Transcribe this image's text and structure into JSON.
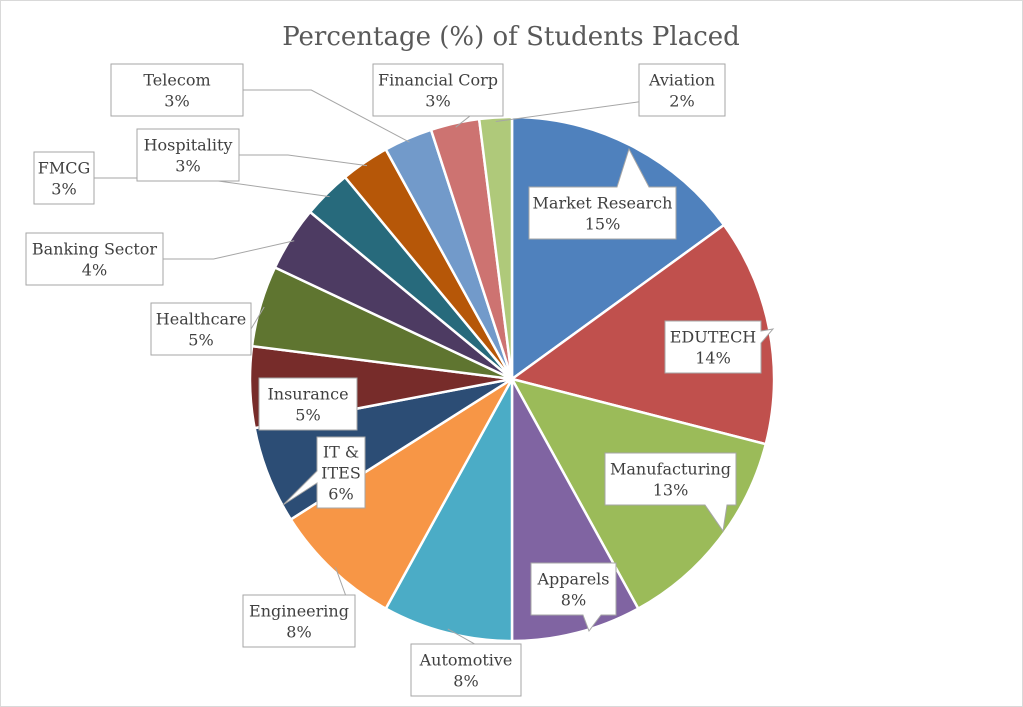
{
  "chart_data": {
    "type": "pie",
    "title": "Percentage (%) of Students Placed",
    "start_angle_deg": 0,
    "direction": "clockwise",
    "legend": "none",
    "data_labels": "callouts",
    "slices": [
      {
        "label": "Market Research",
        "label_lines": [
          "Market Research"
        ],
        "value": 15,
        "value_label": "15%",
        "color": "#4f81bd"
      },
      {
        "label": "EDUTECH",
        "label_lines": [
          "EDUTECH"
        ],
        "value": 14,
        "value_label": "14%",
        "color": "#c0504d"
      },
      {
        "label": "Manufacturing",
        "label_lines": [
          "Manufacturing"
        ],
        "value": 13,
        "value_label": "13%",
        "color": "#9bbb59"
      },
      {
        "label": "Apparels",
        "label_lines": [
          "Apparels"
        ],
        "value": 8,
        "value_label": "8%",
        "color": "#8064a2"
      },
      {
        "label": "Automotive",
        "label_lines": [
          "Automotive"
        ],
        "value": 8,
        "value_label": "8%",
        "color": "#4bacc6"
      },
      {
        "label": "Engineering",
        "label_lines": [
          "Engineering"
        ],
        "value": 8,
        "value_label": "8%",
        "color": "#f79646"
      },
      {
        "label": "IT & ITES",
        "label_lines": [
          "IT &",
          "ITES"
        ],
        "value": 6,
        "value_label": "6%",
        "color": "#2c4d75"
      },
      {
        "label": "Insurance",
        "label_lines": [
          "Insurance"
        ],
        "value": 5,
        "value_label": "5%",
        "color": "#772c2a"
      },
      {
        "label": "Healthcare",
        "label_lines": [
          "Healthcare"
        ],
        "value": 5,
        "value_label": "5%",
        "color": "#5f7530"
      },
      {
        "label": "Banking Sector",
        "label_lines": [
          "Banking Sector"
        ],
        "value": 4,
        "value_label": "4%",
        "color": "#4d3b62"
      },
      {
        "label": "FMCG",
        "label_lines": [
          "FMCG"
        ],
        "value": 3,
        "value_label": "3%",
        "color": "#276a7c"
      },
      {
        "label": "Hospitality",
        "label_lines": [
          "Hospitality"
        ],
        "value": 3,
        "value_label": "3%",
        "color": "#b65708"
      },
      {
        "label": "Telecom",
        "label_lines": [
          "Telecom"
        ],
        "value": 3,
        "value_label": "3%",
        "color": "#729aca"
      },
      {
        "label": "Financial Corp",
        "label_lines": [
          "Financial Corp"
        ],
        "value": 3,
        "value_label": "3%",
        "color": "#cd7371"
      },
      {
        "label": "Aviation",
        "label_lines": [
          "Aviation"
        ],
        "value": 2,
        "value_label": "2%",
        "color": "#afc97a"
      }
    ]
  }
}
